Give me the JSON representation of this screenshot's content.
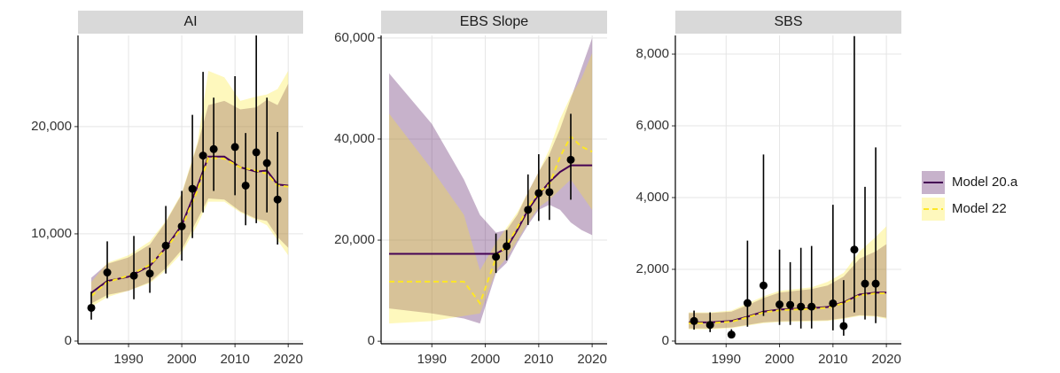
{
  "chart_data": [
    {
      "type": "line",
      "title": "AI",
      "x": [
        1983,
        1986,
        1990,
        1994,
        1997,
        2000,
        2003,
        2005,
        2008,
        2011,
        2014,
        2016,
        2018,
        2020
      ],
      "xlim": [
        1980.5,
        2022.8
      ],
      "xticks": [
        1990,
        2000,
        2010,
        2020
      ],
      "ylim": [
        -250,
        28500
      ],
      "yticks": [
        0,
        {
          "value": 10000,
          "label": "10,000"
        },
        {
          "value": 20000,
          "label": "20,000"
        }
      ],
      "grid": true,
      "series": [
        {
          "name": "Model 20.a",
          "color": "#440154",
          "linestyle": "solid",
          "values": [
            4500,
            5600,
            6000,
            7000,
            8700,
            10800,
            14500,
            17200,
            17200,
            16200,
            15800,
            15900,
            14600,
            14500
          ],
          "lower": [
            3500,
            4300,
            4700,
            5500,
            6800,
            8500,
            11400,
            13300,
            13200,
            12100,
            11400,
            11200,
            9700,
            8700
          ],
          "upper": [
            5900,
            7200,
            7800,
            9000,
            11100,
            13700,
            18400,
            22000,
            22400,
            21600,
            21800,
            22500,
            22000,
            24000
          ]
        },
        {
          "name": "Model 22",
          "color": "#fde725",
          "linestyle": "dashed",
          "values": [
            4200,
            5500,
            6100,
            7100,
            8600,
            10600,
            14100,
            17100,
            17000,
            16200,
            15900,
            15600,
            14500,
            14400
          ],
          "lower": [
            3200,
            4100,
            4700,
            5400,
            6600,
            8200,
            10900,
            13000,
            13000,
            12000,
            11300,
            10800,
            9400,
            8000
          ],
          "upper": [
            5500,
            7300,
            8000,
            9300,
            11200,
            13800,
            18600,
            25200,
            24600,
            22400,
            22800,
            23000,
            23500,
            25200
          ]
        }
      ],
      "observed": {
        "color": "#000000",
        "x": [
          1983,
          1986,
          1991,
          1994,
          1997,
          2000,
          2002,
          2004,
          2006,
          2010,
          2012,
          2014,
          2016,
          2018
        ],
        "values": [
          3100,
          6400,
          6100,
          6300,
          8900,
          10700,
          14200,
          17300,
          17900,
          18100,
          14500,
          17600,
          16600,
          13200
        ],
        "lower": [
          2000,
          4000,
          3900,
          4500,
          6300,
          7500,
          9600,
          12000,
          14000,
          13600,
          10800,
          11000,
          12000,
          9000
        ],
        "upper": [
          4600,
          9300,
          9800,
          8700,
          12600,
          14000,
          21100,
          25100,
          22700,
          24700,
          19400,
          28500,
          22700,
          19500
        ]
      }
    },
    {
      "type": "line",
      "title": "EBS Slope",
      "x": [
        1982,
        1990,
        1996,
        1999,
        2002,
        2004,
        2006,
        2008,
        2010,
        2012,
        2014,
        2016,
        2018,
        2020
      ],
      "xlim": [
        1980.5,
        2022.8
      ],
      "xticks": [
        1990,
        2000,
        2010,
        2020
      ],
      "ylim": [
        -500,
        60500
      ],
      "yticks": [
        0,
        {
          "value": 20000,
          "label": "20,000"
        },
        {
          "value": 40000,
          "label": "40,000"
        },
        {
          "value": 60000,
          "label": "60,000"
        }
      ],
      "grid": true,
      "series": [
        {
          "color": "#440154",
          "linestyle": "solid",
          "values": [
            17300,
            17300,
            17300,
            17300,
            17300,
            18500,
            22000,
            26000,
            29000,
            31500,
            33500,
            34800,
            34800,
            34800
          ],
          "lower": [
            6500,
            5500,
            4500,
            3500,
            13500,
            15500,
            19500,
            23000,
            26000,
            27000,
            26000,
            23500,
            22000,
            21000
          ],
          "upper": [
            53000,
            43000,
            32000,
            25000,
            21500,
            22000,
            25000,
            29500,
            33500,
            37000,
            42000,
            48000,
            54000,
            60000
          ]
        },
        {
          "color": "#fde725",
          "linestyle": "dashed",
          "values": [
            11800,
            11800,
            11800,
            7500,
            16500,
            19000,
            22500,
            26500,
            29500,
            31000,
            36500,
            40500,
            38500,
            37500
          ],
          "lower": [
            3500,
            4000,
            5000,
            5500,
            14000,
            16500,
            20000,
            23500,
            26500,
            28000,
            30000,
            32000,
            29000,
            26000
          ],
          "upper": [
            45000,
            34000,
            25000,
            14000,
            19500,
            22500,
            25500,
            29500,
            33500,
            38000,
            44000,
            48500,
            52000,
            57000
          ]
        }
      ],
      "observed": {
        "color": "#000000",
        "x": [
          2002,
          2004,
          2008,
          2010,
          2012,
          2016
        ],
        "values": [
          16700,
          18800,
          26000,
          29300,
          29500,
          35900
        ],
        "lower": [
          13500,
          16000,
          23000,
          23800,
          24000,
          28000
        ],
        "upper": [
          21300,
          22000,
          33000,
          37000,
          36500,
          45000
        ]
      }
    },
    {
      "type": "line",
      "title": "SBS",
      "x": [
        1983,
        1987,
        1991,
        1994,
        1997,
        2000,
        2003,
        2006,
        2009,
        2012,
        2015,
        2018,
        2020
      ],
      "xlim": [
        1980.5,
        2022.8
      ],
      "xticks": [
        1990,
        2000,
        2010,
        2020
      ],
      "ylim": [
        -75,
        8520
      ],
      "yticks": [
        0,
        {
          "value": 2000,
          "label": "2,000"
        },
        {
          "value": 4000,
          "label": "4,000"
        },
        {
          "value": 6000,
          "label": "6,000"
        },
        {
          "value": 8000,
          "label": "8,000"
        }
      ],
      "grid": true,
      "series": [
        {
          "color": "#440154",
          "linestyle": "solid",
          "values": [
            520,
            520,
            560,
            680,
            820,
            880,
            900,
            920,
            950,
            1080,
            1300,
            1350,
            1350
          ],
          "lower": [
            350,
            350,
            380,
            450,
            520,
            550,
            560,
            570,
            580,
            640,
            720,
            700,
            650
          ],
          "upper": [
            780,
            780,
            820,
            1000,
            1200,
            1350,
            1400,
            1450,
            1550,
            1800,
            2300,
            2500,
            2700
          ]
        },
        {
          "color": "#fde725",
          "linestyle": "dashed",
          "values": [
            500,
            500,
            540,
            660,
            800,
            860,
            880,
            900,
            930,
            1060,
            1280,
            1330,
            1330
          ],
          "lower": [
            330,
            330,
            360,
            430,
            500,
            530,
            540,
            550,
            560,
            620,
            700,
            680,
            620
          ],
          "upper": [
            800,
            800,
            850,
            1050,
            1250,
            1400,
            1450,
            1500,
            1650,
            1900,
            2500,
            2900,
            3200
          ]
        }
      ],
      "observed": {
        "color": "#000000",
        "x": [
          1984,
          1987,
          1991,
          1994,
          1997,
          2000,
          2002,
          2004,
          2006,
          2010,
          2012,
          2014,
          2016,
          2018
        ],
        "values": [
          560,
          450,
          180,
          1060,
          1550,
          1020,
          1010,
          960,
          960,
          1050,
          420,
          2550,
          1600,
          1600
        ],
        "lower": [
          320,
          250,
          100,
          400,
          700,
          450,
          450,
          350,
          350,
          300,
          150,
          800,
          600,
          500
        ],
        "upper": [
          850,
          800,
          330,
          2800,
          5200,
          2550,
          2200,
          2600,
          2650,
          3800,
          1700,
          8500,
          4300,
          5400
        ]
      }
    }
  ]
}
